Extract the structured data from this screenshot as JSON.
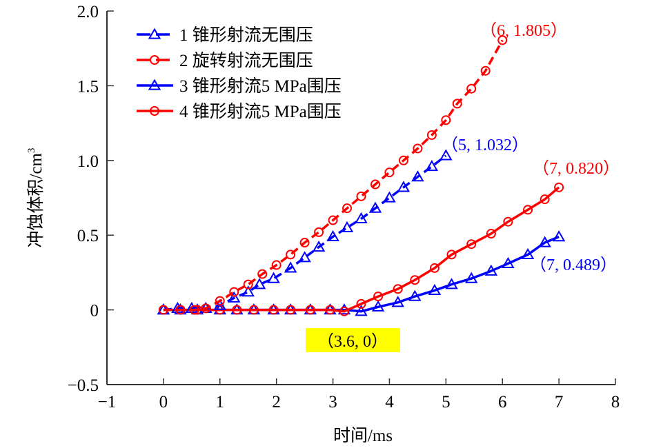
{
  "chart_data": {
    "type": "line",
    "title": "",
    "xlabel": "时间/ms",
    "ylabel": "冲蚀体积/cm³",
    "xlim": [
      -1,
      8
    ],
    "ylim": [
      -0.5,
      2.0
    ],
    "xticks": [
      -1,
      0,
      1,
      2,
      3,
      4,
      5,
      6,
      7,
      8
    ],
    "xtick_labels": [
      "−1",
      "0",
      "1",
      "2",
      "3",
      "4",
      "5",
      "6",
      "7",
      "8"
    ],
    "yticks": [
      -0.5,
      0,
      0.5,
      1.0,
      1.5,
      2.0
    ],
    "ytick_labels": [
      "−0.5",
      "0",
      "0.5",
      "1.0",
      "1.5",
      "2.0"
    ],
    "grid": false,
    "legend_position": "top-left",
    "series": [
      {
        "name": "1 锥形射流无围压",
        "color": "#0000ff",
        "line_style": "dashed",
        "marker": "triangle",
        "x": [
          0,
          0.25,
          0.5,
          0.75,
          1.0,
          1.25,
          1.5,
          1.7,
          1.95,
          2.25,
          2.5,
          2.75,
          3.0,
          3.25,
          3.5,
          3.75,
          4.0,
          4.25,
          4.5,
          4.75,
          5.0
        ],
        "y": [
          0,
          0.01,
          0.01,
          0.01,
          0.03,
          0.08,
          0.12,
          0.17,
          0.21,
          0.28,
          0.35,
          0.42,
          0.49,
          0.55,
          0.61,
          0.68,
          0.75,
          0.82,
          0.89,
          0.96,
          1.032
        ]
      },
      {
        "name": "2 旋转射流无围压",
        "color": "#ff0000",
        "line_style": "dashed",
        "marker": "circle",
        "x": [
          0,
          0.3,
          0.55,
          0.75,
          1.0,
          1.25,
          1.5,
          1.75,
          2.0,
          2.25,
          2.5,
          2.75,
          3.0,
          3.25,
          3.5,
          3.75,
          4.0,
          4.25,
          4.5,
          4.75,
          5.0,
          5.2,
          5.45,
          5.7,
          6.0
        ],
        "y": [
          0,
          0.0,
          0.0,
          0.01,
          0.06,
          0.12,
          0.17,
          0.24,
          0.3,
          0.37,
          0.45,
          0.52,
          0.6,
          0.68,
          0.76,
          0.84,
          0.92,
          1.0,
          1.08,
          1.17,
          1.27,
          1.38,
          1.48,
          1.6,
          1.805
        ]
      },
      {
        "name": "3 锥形射流5 MPa围压",
        "color": "#0000ff",
        "line_style": "solid",
        "marker": "triangle",
        "x": [
          0,
          0.3,
          0.6,
          1.0,
          1.3,
          1.6,
          1.95,
          2.25,
          2.6,
          2.95,
          3.2,
          3.5,
          3.8,
          4.15,
          4.45,
          4.8,
          5.1,
          5.45,
          5.8,
          6.1,
          6.45,
          6.75,
          7.0
        ],
        "y": [
          0,
          0,
          0,
          0,
          0,
          0,
          0,
          0,
          0,
          0,
          0,
          -0.01,
          0.02,
          0.05,
          0.09,
          0.13,
          0.17,
          0.21,
          0.26,
          0.31,
          0.37,
          0.45,
          0.489
        ]
      },
      {
        "name": "4 锥形射流5 MPa围压",
        "color": "#ff0000",
        "line_style": "solid",
        "marker": "circle",
        "x": [
          0,
          0.3,
          0.6,
          1.0,
          1.3,
          1.6,
          1.95,
          2.25,
          2.6,
          2.95,
          3.2,
          3.5,
          3.8,
          4.15,
          4.45,
          4.8,
          5.1,
          5.45,
          5.8,
          6.1,
          6.45,
          6.75,
          7.0
        ],
        "y": [
          0,
          0,
          0,
          0,
          0,
          0,
          0,
          0,
          0,
          0,
          -0.01,
          0.04,
          0.09,
          0.14,
          0.2,
          0.28,
          0.37,
          0.44,
          0.51,
          0.59,
          0.67,
          0.74,
          0.82
        ]
      }
    ],
    "annotations": [
      {
        "text": "（6, 1.805）",
        "x": 6,
        "y": 1.805,
        "color": "#ff0000"
      },
      {
        "text": "（5, 1.032）",
        "x": 5,
        "y": 1.032,
        "color": "#0000ff"
      },
      {
        "text": "（7, 0.820）",
        "x": 7,
        "y": 0.82,
        "color": "#ff0000"
      },
      {
        "text": "（7, 0.489）",
        "x": 7,
        "y": 0.489,
        "color": "#0000ff"
      },
      {
        "text": "（3.6, 0）",
        "x": 3.6,
        "y": 0,
        "color": "#000000",
        "highlight": "#ffff00"
      }
    ]
  }
}
